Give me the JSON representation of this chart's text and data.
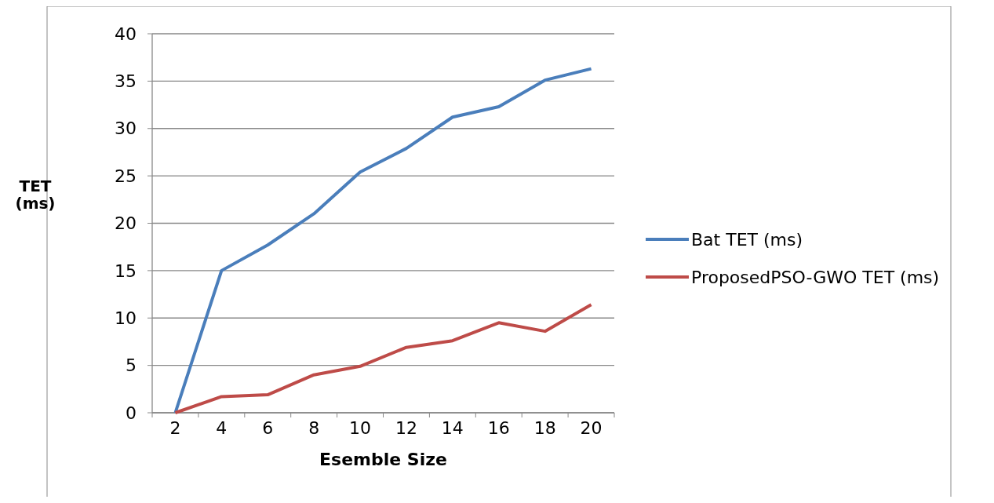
{
  "chart_data": {
    "type": "line",
    "xlabel": "Esemble Size",
    "ylabel": "TET (ms)",
    "categories": [
      "2",
      "4",
      "6",
      "8",
      "10",
      "12",
      "14",
      "16",
      "18",
      "20"
    ],
    "series": [
      {
        "name": "Bat TET (ms)",
        "color": "#4a7ebb",
        "values": [
          0,
          15,
          17.7,
          21,
          25.4,
          27.9,
          31.2,
          32.3,
          35.1,
          36.3
        ]
      },
      {
        "name": "ProposedPSO-GWO TET (ms)",
        "color": "#be4b48",
        "values": [
          0,
          1.7,
          1.9,
          4,
          4.9,
          6.9,
          7.6,
          9.5,
          8.6,
          11.4
        ]
      }
    ],
    "ylim": [
      0,
      40
    ],
    "yticks": [
      0,
      5,
      10,
      15,
      20,
      25,
      30,
      35,
      40
    ],
    "grid": "y",
    "legend": "right",
    "marker": "none",
    "line_style": "solid"
  }
}
